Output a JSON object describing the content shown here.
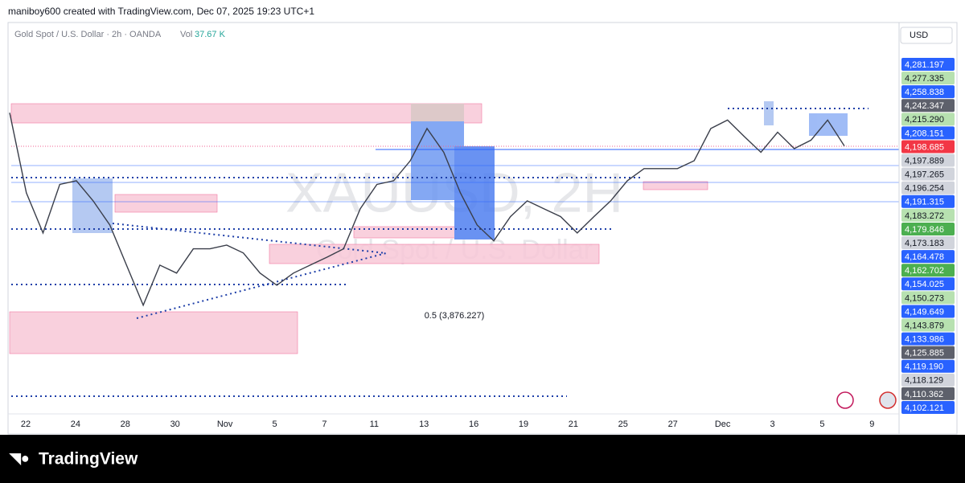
{
  "header": {
    "caption": "maniboy600 created with TradingView.com, Dec 07, 2025 19:23 UTC+1"
  },
  "chart": {
    "symbol": "Gold Spot / U.S. Dollar · 2h · OANDA",
    "volume_label": "Vol",
    "volume": "37.67 K",
    "currency": "USD",
    "watermark_ticker": "XAUUSD, 2H",
    "watermark_name": "Gold Spot / U.S. Dollar",
    "annotation": "0.5 (3,876.227)",
    "ylim": [
      3697,
      4436
    ],
    "price_path": [
      4268,
      4116,
      4040,
      4132,
      4139,
      4101,
      4055,
      3979,
      3903,
      3979,
      3964,
      4010,
      4010,
      4017,
      4002,
      3964,
      3941,
      3964,
      3979,
      3994,
      4010,
      4086,
      4132,
      4139,
      4177,
      4238,
      4193,
      4116,
      4055,
      4025,
      4071,
      4101,
      4086,
      4071,
      4040,
      4071,
      4101,
      4139,
      4162,
      4162,
      4162,
      4177,
      4238,
      4254,
      4223,
      4193,
      4231,
      4200,
      4216,
      4254,
      4205
    ],
    "price_color": "#3a3e4a",
    "price_labels": [
      {
        "text": "4,281.197",
        "color": "#2962ff"
      },
      {
        "text": "4,277.335",
        "color": "#b7e1b0"
      },
      {
        "text": "4,258.838",
        "color": "#2962ff"
      },
      {
        "text": "4,242.347",
        "color": "#5d606b"
      },
      {
        "text": "4,215.290",
        "color": "#b7e1b0"
      },
      {
        "text": "4,208.151",
        "color": "#2962ff"
      },
      {
        "text": "4,198.685",
        "color": "#f23645"
      },
      {
        "text": "4,197.889",
        "color": "#d1d4dc"
      },
      {
        "text": "4,197.265",
        "color": "#d1d4dc"
      },
      {
        "text": "4,196.254",
        "color": "#d1d4dc"
      },
      {
        "text": "4,191.315",
        "color": "#2962ff"
      },
      {
        "text": "4,183.272",
        "color": "#b7e1b0"
      },
      {
        "text": "4,179.846",
        "color": "#4caf50"
      },
      {
        "text": "4,173.183",
        "color": "#d1d4dc"
      },
      {
        "text": "4,164.478",
        "color": "#2962ff"
      },
      {
        "text": "4,162.702",
        "color": "#4caf50"
      },
      {
        "text": "4,154.025",
        "color": "#2962ff"
      },
      {
        "text": "4,150.273",
        "color": "#b7e1b0"
      },
      {
        "text": "4,149.649",
        "color": "#2962ff"
      },
      {
        "text": "4,143.879",
        "color": "#b7e1b0"
      },
      {
        "text": "4,133.986",
        "color": "#2962ff"
      },
      {
        "text": "4,125.885",
        "color": "#5d606b"
      },
      {
        "text": "4,119.190",
        "color": "#2962ff"
      },
      {
        "text": "4,118.129",
        "color": "#d1d4dc"
      },
      {
        "text": "4,110.362",
        "color": "#5d606b"
      },
      {
        "text": "4,102.121",
        "color": "#2962ff"
      }
    ],
    "date_labels": [
      "22",
      "24",
      "28",
      "30",
      "Nov",
      "5",
      "7",
      "11",
      "13",
      "16",
      "19",
      "21",
      "25",
      "27",
      "Dec",
      "3",
      "5",
      "9"
    ]
  },
  "footer": {
    "brand": "TradingView"
  }
}
